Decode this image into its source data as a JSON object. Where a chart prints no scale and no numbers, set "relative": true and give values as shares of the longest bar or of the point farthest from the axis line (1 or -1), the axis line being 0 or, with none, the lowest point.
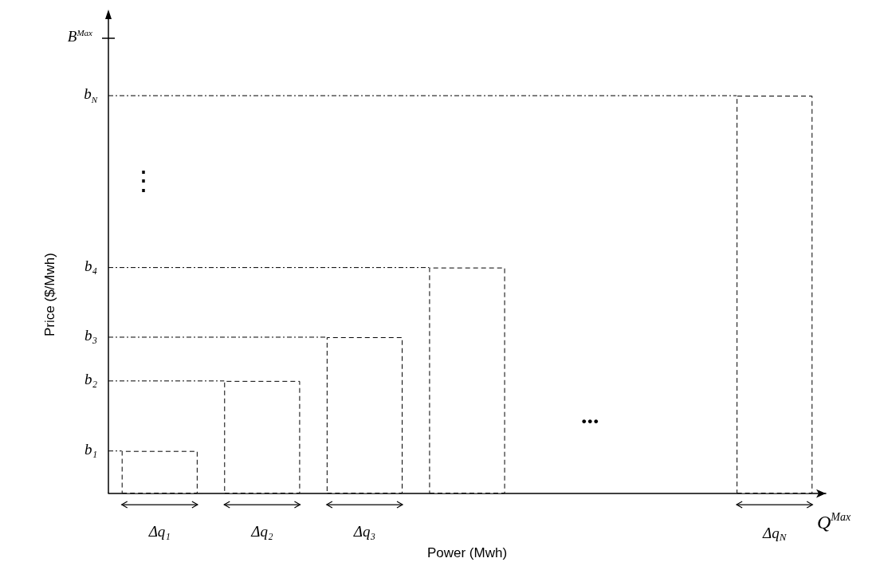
{
  "chart_data": {
    "type": "bar",
    "relative": true,
    "xlabel": "Power (Mwh)",
    "ylabel": "Price ($/Mwh)",
    "categories": [
      "Δq₁",
      "Δq₂",
      "Δq₃",
      null,
      null,
      null,
      "Δq$_{N}$"
    ],
    "values": [
      0.107,
      0.283,
      0.393,
      0.568,
      null,
      null,
      1
    ],
    "color": "#ffffff",
    "ref_lines": [
      {
        "axis": "y",
        "value": 0.107,
        "label": "b₁",
        "line_style": "dashed"
      },
      {
        "axis": "y",
        "value": 0.283,
        "label": "b₂",
        "line_style": "dashed"
      },
      {
        "axis": "y",
        "value": 0.393,
        "label": "b₃",
        "line_style": "dashed"
      },
      {
        "axis": "y",
        "value": 0.568,
        "label": "b₄",
        "line_style": "dashed"
      },
      {
        "axis": "y",
        "value": 1,
        "label": "b$_{N}$",
        "line_style": "dashed"
      }
    ],
    "annotations": [
      "B$^{Max}$",
      "Q$^{Max}$",
      "...",
      "⋮"
    ]
  }
}
